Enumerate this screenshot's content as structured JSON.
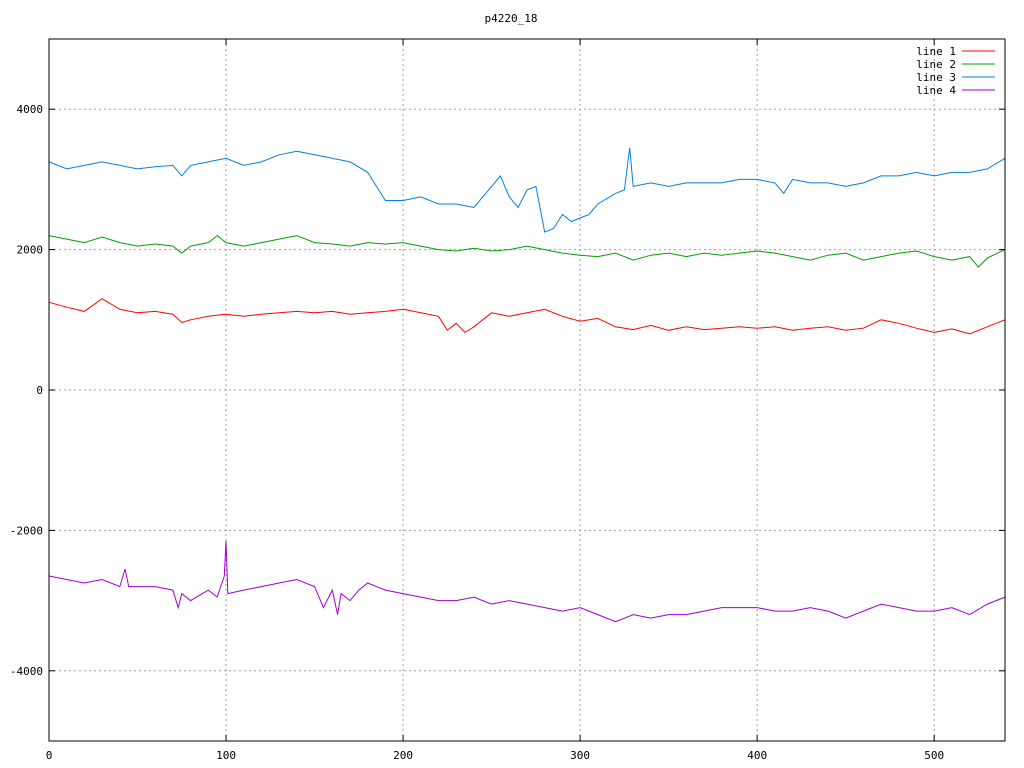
{
  "chart_data": {
    "type": "line",
    "title": "p4220_18",
    "xlabel": "",
    "ylabel": "",
    "xlim": [
      0,
      540
    ],
    "ylim": [
      -5000,
      5000
    ],
    "x_ticks": [
      0,
      100,
      200,
      300,
      400,
      500
    ],
    "y_ticks": [
      -4000,
      -2000,
      0,
      2000,
      4000
    ],
    "grid": true,
    "legend_position": "top-right",
    "series": [
      {
        "name": "line 1",
        "color": "#ff0000",
        "x": [
          0,
          10,
          20,
          30,
          40,
          50,
          60,
          70,
          75,
          80,
          90,
          100,
          110,
          120,
          130,
          140,
          150,
          160,
          170,
          180,
          190,
          200,
          210,
          220,
          225,
          230,
          235,
          240,
          250,
          260,
          270,
          280,
          290,
          300,
          310,
          320,
          330,
          340,
          350,
          360,
          370,
          380,
          390,
          400,
          410,
          420,
          430,
          440,
          450,
          460,
          470,
          480,
          490,
          500,
          510,
          520,
          530,
          540
        ],
        "y": [
          1250,
          1180,
          1120,
          1300,
          1150,
          1100,
          1120,
          1080,
          960,
          1000,
          1050,
          1080,
          1050,
          1080,
          1100,
          1120,
          1100,
          1120,
          1080,
          1100,
          1120,
          1150,
          1100,
          1050,
          850,
          950,
          820,
          900,
          1100,
          1050,
          1100,
          1150,
          1050,
          980,
          1020,
          900,
          860,
          920,
          850,
          900,
          860,
          880,
          900,
          880,
          900,
          850,
          880,
          900,
          850,
          880,
          1000,
          950,
          880,
          820,
          870,
          800,
          900,
          1000
        ]
      },
      {
        "name": "line 2",
        "color": "#00a000",
        "x": [
          0,
          10,
          20,
          30,
          40,
          50,
          60,
          70,
          75,
          80,
          90,
          95,
          100,
          110,
          120,
          130,
          140,
          150,
          160,
          170,
          180,
          190,
          200,
          210,
          220,
          230,
          240,
          250,
          260,
          270,
          280,
          290,
          300,
          310,
          320,
          330,
          340,
          350,
          360,
          370,
          380,
          390,
          400,
          410,
          420,
          430,
          440,
          450,
          460,
          470,
          480,
          490,
          500,
          510,
          520,
          525,
          530,
          540
        ],
        "y": [
          2200,
          2150,
          2100,
          2180,
          2100,
          2050,
          2080,
          2050,
          1950,
          2050,
          2100,
          2200,
          2100,
          2050,
          2100,
          2150,
          2200,
          2100,
          2080,
          2050,
          2100,
          2080,
          2100,
          2050,
          2000,
          1980,
          2020,
          1980,
          2000,
          2050,
          2000,
          1950,
          1920,
          1900,
          1950,
          1850,
          1920,
          1950,
          1900,
          1950,
          1920,
          1950,
          1980,
          1950,
          1900,
          1850,
          1920,
          1950,
          1850,
          1900,
          1950,
          1980,
          1900,
          1850,
          1900,
          1750,
          1880,
          2000
        ]
      },
      {
        "name": "line 3",
        "color": "#0080e0",
        "x": [
          0,
          10,
          20,
          30,
          40,
          50,
          60,
          70,
          75,
          80,
          90,
          100,
          110,
          120,
          130,
          140,
          150,
          160,
          170,
          180,
          185,
          190,
          200,
          210,
          220,
          230,
          240,
          245,
          250,
          255,
          260,
          265,
          270,
          275,
          280,
          285,
          290,
          295,
          300,
          305,
          310,
          320,
          325,
          328,
          330,
          340,
          350,
          360,
          370,
          380,
          390,
          400,
          410,
          415,
          420,
          430,
          440,
          450,
          460,
          470,
          480,
          490,
          500,
          510,
          520,
          530,
          540
        ],
        "y": [
          3250,
          3150,
          3200,
          3250,
          3200,
          3150,
          3180,
          3200,
          3050,
          3200,
          3250,
          3300,
          3200,
          3250,
          3350,
          3400,
          3350,
          3300,
          3250,
          3100,
          2900,
          2700,
          2700,
          2750,
          2650,
          2650,
          2600,
          2750,
          2900,
          3050,
          2750,
          2600,
          2850,
          2900,
          2250,
          2300,
          2500,
          2400,
          2450,
          2500,
          2650,
          2800,
          2850,
          3450,
          2900,
          2950,
          2900,
          2950,
          2950,
          2950,
          3000,
          3000,
          2950,
          2800,
          3000,
          2950,
          2950,
          2900,
          2950,
          3050,
          3050,
          3100,
          3050,
          3100,
          3100,
          3150,
          3300
        ]
      },
      {
        "name": "line 4",
        "color": "#a000d0",
        "x": [
          0,
          10,
          20,
          30,
          40,
          43,
          45,
          50,
          60,
          70,
          73,
          75,
          80,
          90,
          95,
          99,
          100,
          101,
          110,
          120,
          130,
          140,
          150,
          155,
          160,
          163,
          165,
          170,
          175,
          180,
          190,
          200,
          210,
          220,
          230,
          240,
          250,
          260,
          270,
          280,
          290,
          300,
          310,
          320,
          330,
          340,
          350,
          360,
          370,
          380,
          390,
          400,
          410,
          420,
          430,
          440,
          450,
          460,
          470,
          480,
          490,
          500,
          510,
          520,
          530,
          540
        ],
        "y": [
          -2650,
          -2700,
          -2750,
          -2700,
          -2800,
          -2550,
          -2800,
          -2800,
          -2800,
          -2850,
          -3100,
          -2900,
          -3000,
          -2850,
          -2950,
          -2650,
          -2150,
          -2900,
          -2850,
          -2800,
          -2750,
          -2700,
          -2800,
          -3100,
          -2850,
          -3200,
          -2900,
          -3000,
          -2850,
          -2750,
          -2850,
          -2900,
          -2950,
          -3000,
          -3000,
          -2950,
          -3050,
          -3000,
          -3050,
          -3100,
          -3150,
          -3100,
          -3200,
          -3300,
          -3200,
          -3250,
          -3200,
          -3200,
          -3150,
          -3100,
          -3100,
          -3100,
          -3150,
          -3150,
          -3100,
          -3150,
          -3250,
          -3150,
          -3050,
          -3100,
          -3150,
          -3150,
          -3100,
          -3200,
          -3050,
          -2950
        ]
      }
    ]
  }
}
